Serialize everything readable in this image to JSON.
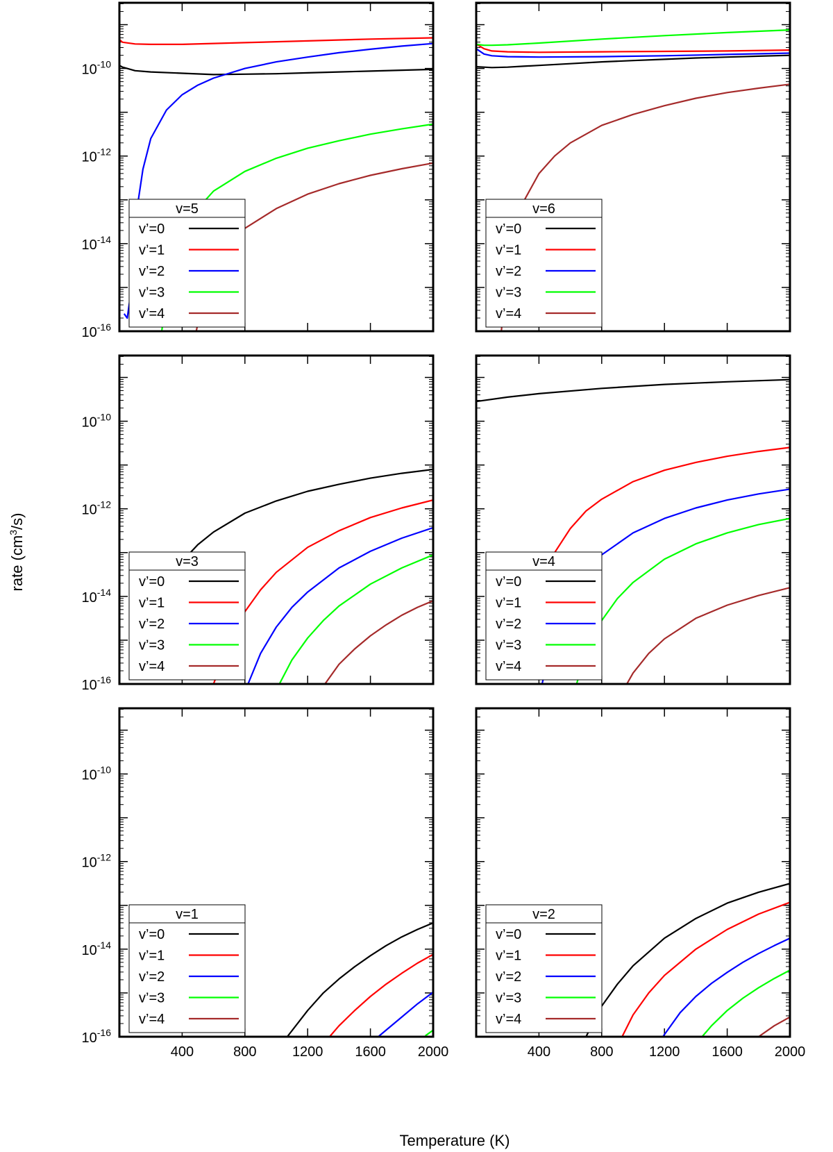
{
  "figure": {
    "ylabel_prefix": "rate (cm",
    "ylabel_sup": "3",
    "ylabel_suffix": "/s)",
    "xlabel": "Temperature (K)"
  },
  "chart_data": {
    "type": "line",
    "scale_y": "log",
    "xlim": [
      0,
      2000
    ],
    "ylim_exponent": [
      -16,
      -8.5
    ],
    "xticks": [
      400,
      800,
      1200,
      1600,
      2000
    ],
    "xtick_labels": [
      "400",
      "800",
      "1200",
      "1600",
      "2000"
    ],
    "yticks_exponent": [
      -16,
      -14,
      -12,
      -10
    ],
    "ytick_base": "10",
    "ytick_exponent_labels": [
      "-16",
      "-14",
      "-12",
      "-10"
    ],
    "series_colors": [
      "#000000",
      "#ff0000",
      "#0000ff",
      "#00ff00",
      "#a52a2a"
    ],
    "legend_labels": [
      "v’=0",
      "v’=1",
      "v’=2",
      "v’=3",
      "v’=4"
    ],
    "panels": [
      {
        "title": "v=5",
        "series": [
          {
            "name": "v’=0",
            "x": [
              0,
              20,
              100,
              200,
              400,
              600,
              800,
              1000,
              1200,
              1400,
              1600,
              1800,
              2000
            ],
            "log10_y": [
              -9.93,
              -9.97,
              -10.05,
              -10.08,
              -10.11,
              -10.14,
              -10.13,
              -10.12,
              -10.1,
              -10.08,
              -10.06,
              -10.04,
              -10.02
            ]
          },
          {
            "name": "v’=1",
            "x": [
              0,
              20,
              100,
              200,
              400,
              800,
              1200,
              1600,
              2000
            ],
            "log10_y": [
              -9.34,
              -9.4,
              -9.44,
              -9.45,
              -9.45,
              -9.41,
              -9.37,
              -9.33,
              -9.3
            ]
          },
          {
            "name": "v’=2",
            "x": [
              30,
              50,
              70,
              100,
              150,
              200,
              300,
              400,
              500,
              600,
              800,
              1000,
              1200,
              1400,
              1600,
              1800,
              2000
            ],
            "log10_y": [
              -15.6,
              -15.7,
              -15.2,
              -13.5,
              -12.3,
              -11.6,
              -10.95,
              -10.6,
              -10.38,
              -10.22,
              -10.0,
              -9.85,
              -9.74,
              -9.64,
              -9.56,
              -9.49,
              -9.43
            ]
          },
          {
            "name": "v’=3",
            "x": [
              270,
              300,
              350,
              400,
              500,
              600,
              800,
              1000,
              1200,
              1400,
              1600,
              1800,
              2000
            ],
            "log10_y": [
              -16.0,
              -15.2,
              -14.4,
              -13.85,
              -13.2,
              -12.8,
              -12.35,
              -12.05,
              -11.82,
              -11.65,
              -11.5,
              -11.38,
              -11.27
            ]
          },
          {
            "name": "v’=4",
            "x": [
              490,
              550,
              600,
              700,
              800,
              1000,
              1200,
              1400,
              1600,
              1800,
              2000
            ],
            "log10_y": [
              -16.0,
              -15.0,
              -14.55,
              -14.0,
              -13.65,
              -13.2,
              -12.87,
              -12.63,
              -12.44,
              -12.29,
              -12.16
            ]
          }
        ]
      },
      {
        "title": "v=6",
        "series": [
          {
            "name": "v’=0",
            "x": [
              0,
              50,
              100,
              200,
              300,
              400,
              600,
              800,
              1000,
              1200,
              1400,
              1600,
              1800,
              2000
            ],
            "log10_y": [
              -9.96,
              -9.97,
              -9.98,
              -9.97,
              -9.95,
              -9.93,
              -9.89,
              -9.85,
              -9.82,
              -9.79,
              -9.76,
              -9.74,
              -9.72,
              -9.7
            ]
          },
          {
            "name": "v’=1",
            "x": [
              0,
              50,
              100,
              200,
              400,
              800,
              1200,
              1600,
              2000
            ],
            "log10_y": [
              -9.44,
              -9.55,
              -9.6,
              -9.62,
              -9.63,
              -9.62,
              -9.61,
              -9.6,
              -9.58
            ]
          },
          {
            "name": "v’=2",
            "x": [
              0,
              50,
              100,
              200,
              400,
              800,
              1200,
              1600,
              2000
            ],
            "log10_y": [
              -9.55,
              -9.67,
              -9.71,
              -9.73,
              -9.74,
              -9.73,
              -9.71,
              -9.68,
              -9.65
            ]
          },
          {
            "name": "v’=3",
            "x": [
              0,
              50,
              100,
              200,
              400,
              800,
              1200,
              1600,
              2000
            ],
            "log10_y": [
              -9.45,
              -9.47,
              -9.47,
              -9.46,
              -9.42,
              -9.33,
              -9.25,
              -9.18,
              -9.12
            ]
          },
          {
            "name": "v’=4",
            "x": [
              160,
              200,
              250,
              300,
              400,
              500,
              600,
              800,
              1000,
              1200,
              1400,
              1600,
              1800,
              2000
            ],
            "log10_y": [
              -16.0,
              -14.6,
              -13.6,
              -13.05,
              -12.4,
              -12.0,
              -11.7,
              -11.3,
              -11.05,
              -10.85,
              -10.68,
              -10.55,
              -10.45,
              -10.36
            ]
          }
        ]
      },
      {
        "title": "v=3",
        "series": [
          {
            "name": "v’=0",
            "x": [
              260,
              300,
              400,
              500,
              600,
              800,
              1000,
              1200,
              1400,
              1600,
              1800,
              2000
            ],
            "log10_y": [
              -14.0,
              -13.75,
              -13.2,
              -12.82,
              -12.53,
              -12.1,
              -11.82,
              -11.6,
              -11.44,
              -11.3,
              -11.19,
              -11.1
            ]
          },
          {
            "name": "v’=1",
            "x": [
              600,
              700,
              800,
              900,
              1000,
              1200,
              1400,
              1600,
              1800,
              2000
            ],
            "log10_y": [
              -16.0,
              -15.05,
              -14.35,
              -13.85,
              -13.45,
              -12.88,
              -12.5,
              -12.2,
              -11.98,
              -11.8
            ]
          },
          {
            "name": "v’=2",
            "x": [
              820,
              900,
              1000,
              1100,
              1200,
              1400,
              1600,
              1800,
              2000
            ],
            "log10_y": [
              -16.0,
              -15.3,
              -14.7,
              -14.25,
              -13.9,
              -13.35,
              -12.97,
              -12.67,
              -12.43
            ]
          },
          {
            "name": "v’=3",
            "x": [
              1020,
              1100,
              1200,
              1300,
              1400,
              1600,
              1800,
              2000
            ],
            "log10_y": [
              -16.0,
              -15.45,
              -14.95,
              -14.55,
              -14.22,
              -13.72,
              -13.35,
              -13.05
            ]
          },
          {
            "name": "v’=4",
            "x": [
              1310,
              1400,
              1500,
              1600,
              1700,
              1800,
              1900,
              2000
            ],
            "log10_y": [
              -16.0,
              -15.55,
              -15.2,
              -14.9,
              -14.65,
              -14.43,
              -14.25,
              -14.1
            ]
          }
        ]
      },
      {
        "title": "v=4",
        "series": [
          {
            "name": "v’=0",
            "x": [
              0,
              200,
              400,
              800,
              1200,
              1600,
              2000
            ],
            "log10_y": [
              -9.55,
              -9.45,
              -9.37,
              -9.25,
              -9.16,
              -9.1,
              -9.05
            ]
          },
          {
            "name": "v’=1",
            "x": [
              380,
              400,
              450,
              500,
              600,
              700,
              800,
              1000,
              1200,
              1400,
              1600,
              1800,
              2000
            ],
            "log10_y": [
              -14.2,
              -13.9,
              -13.4,
              -13.0,
              -12.45,
              -12.05,
              -11.78,
              -11.38,
              -11.12,
              -10.94,
              -10.8,
              -10.69,
              -10.6
            ]
          },
          {
            "name": "v’=2",
            "x": [
              420,
              500,
              600,
              700,
              800,
              1000,
              1200,
              1400,
              1600,
              1800,
              2000
            ],
            "log10_y": [
              -16.0,
              -14.8,
              -13.95,
              -13.42,
              -13.05,
              -12.55,
              -12.22,
              -11.98,
              -11.8,
              -11.66,
              -11.55
            ]
          },
          {
            "name": "v’=3",
            "x": [
              640,
              700,
              800,
              900,
              1000,
              1200,
              1400,
              1600,
              1800,
              2000
            ],
            "log10_y": [
              -16.0,
              -15.3,
              -14.55,
              -14.05,
              -13.68,
              -13.15,
              -12.8,
              -12.55,
              -12.36,
              -12.22
            ]
          },
          {
            "name": "v’=4",
            "x": [
              960,
              1000,
              1100,
              1200,
              1400,
              1600,
              1800,
              2000
            ],
            "log10_y": [
              -16.0,
              -15.75,
              -15.3,
              -14.97,
              -14.5,
              -14.2,
              -13.98,
              -13.8
            ]
          }
        ]
      },
      {
        "title": "v=1",
        "series": [
          {
            "name": "v’=0",
            "x": [
              1070,
              1200,
              1300,
              1400,
              1500,
              1600,
              1700,
              1800,
              1900,
              2000
            ],
            "log10_y": [
              -16.0,
              -15.4,
              -15.0,
              -14.68,
              -14.4,
              -14.15,
              -13.92,
              -13.72,
              -13.55,
              -13.4
            ]
          },
          {
            "name": "v’=1",
            "x": [
              1340,
              1400,
              1500,
              1600,
              1700,
              1800,
              1900,
              2000
            ],
            "log10_y": [
              -16.0,
              -15.75,
              -15.4,
              -15.08,
              -14.8,
              -14.55,
              -14.32,
              -14.12
            ]
          },
          {
            "name": "v’=2",
            "x": [
              1650,
              1700,
              1800,
              1900,
              2000
            ],
            "log10_y": [
              -16.0,
              -15.85,
              -15.55,
              -15.25,
              -14.98
            ]
          },
          {
            "name": "v’=3",
            "x": [
              1950,
              2000
            ],
            "log10_y": [
              -15.98,
              -15.85
            ]
          },
          {
            "name": "v’=4",
            "x": [],
            "log10_y": []
          }
        ]
      },
      {
        "title": "v=2",
        "series": [
          {
            "name": "v’=0",
            "x": [
              700,
              800,
              900,
              1000,
              1200,
              1400,
              1600,
              1800,
              2000
            ],
            "log10_y": [
              -16.0,
              -15.3,
              -14.8,
              -14.38,
              -13.75,
              -13.3,
              -12.95,
              -12.7,
              -12.5
            ]
          },
          {
            "name": "v’=1",
            "x": [
              930,
              1000,
              1100,
              1200,
              1400,
              1600,
              1800,
              2000
            ],
            "log10_y": [
              -16.0,
              -15.5,
              -15.0,
              -14.6,
              -14.0,
              -13.55,
              -13.2,
              -12.93
            ]
          },
          {
            "name": "v’=2",
            "x": [
              1190,
              1300,
              1400,
              1500,
              1600,
              1700,
              1800,
              1900,
              2000
            ],
            "log10_y": [
              -16.0,
              -15.45,
              -15.08,
              -14.78,
              -14.53,
              -14.3,
              -14.1,
              -13.92,
              -13.75
            ]
          },
          {
            "name": "v’=3",
            "x": [
              1440,
              1500,
              1600,
              1700,
              1800,
              1900,
              2000
            ],
            "log10_y": [
              -16.0,
              -15.75,
              -15.4,
              -15.12,
              -14.88,
              -14.67,
              -14.48
            ]
          },
          {
            "name": "v’=4",
            "x": [
              1800,
              1900,
              2000
            ],
            "log10_y": [
              -16.0,
              -15.75,
              -15.55
            ]
          }
        ]
      }
    ]
  }
}
